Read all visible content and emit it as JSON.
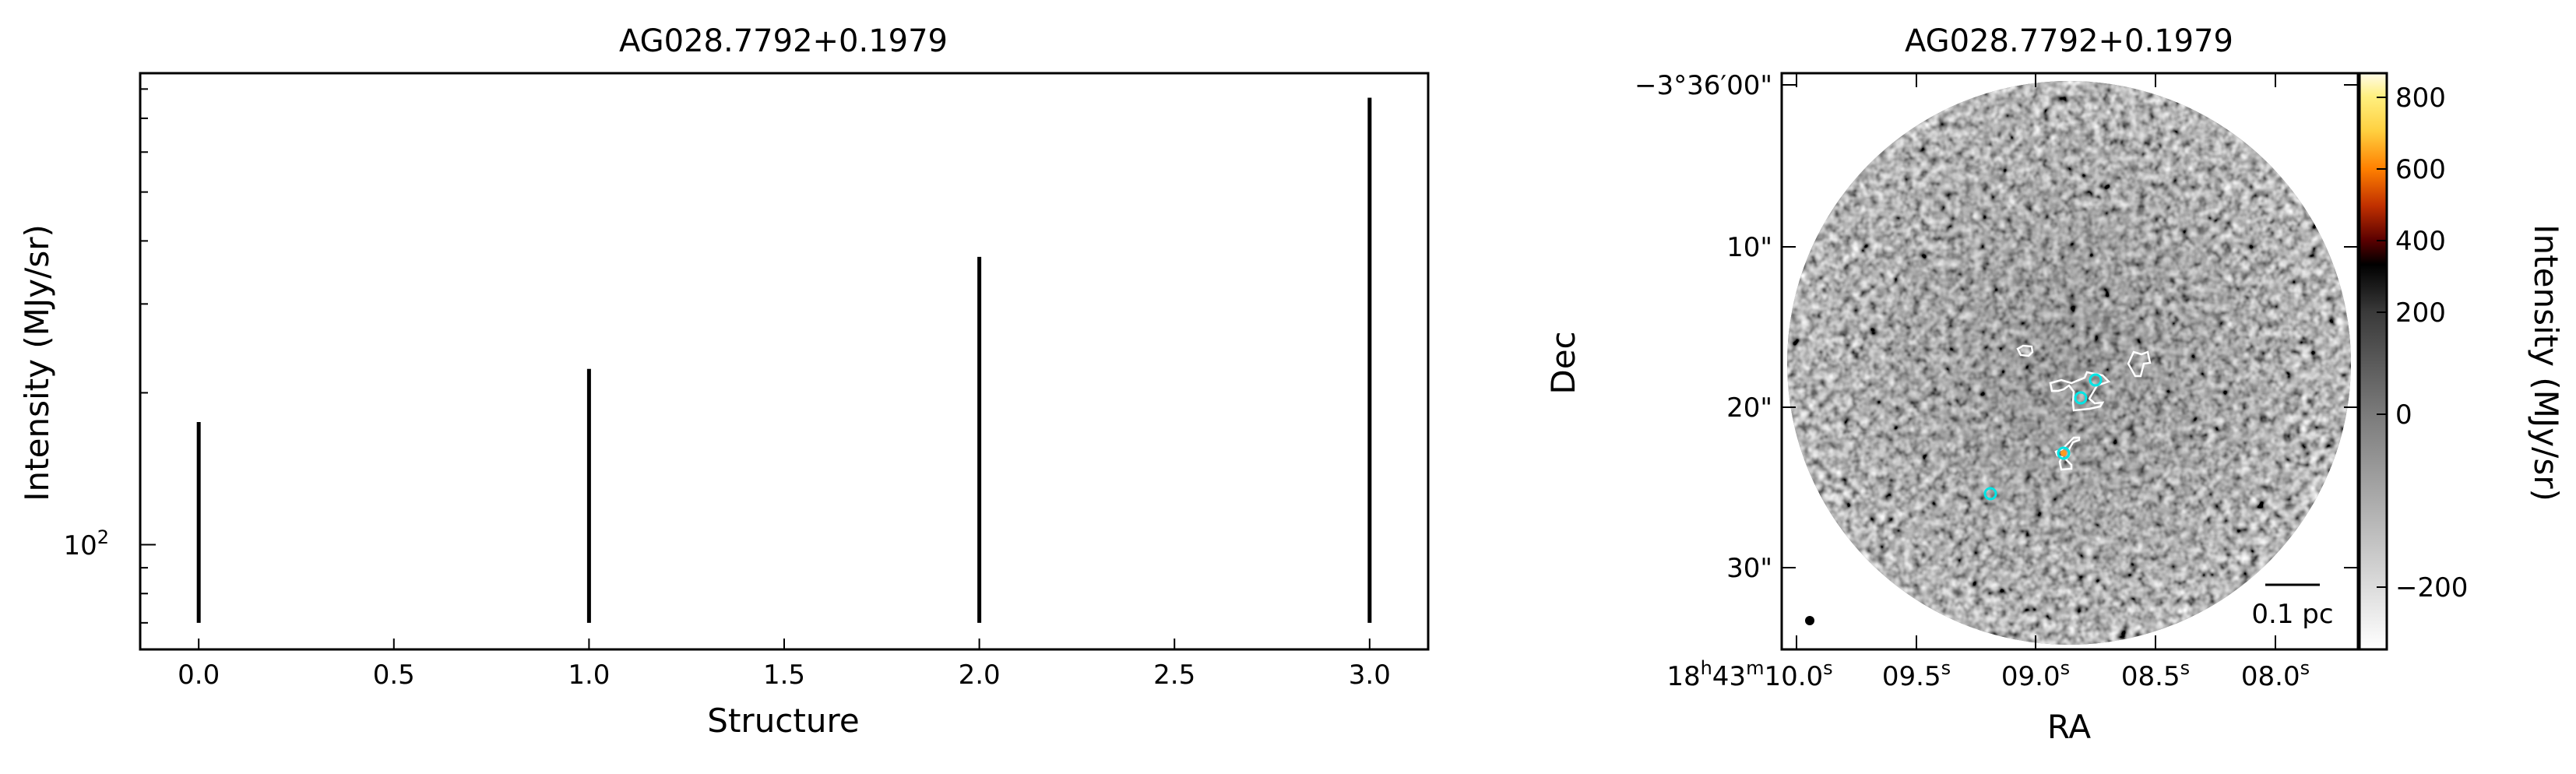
{
  "chart_data": [
    {
      "type": "vlines",
      "title": "AG028.7792+0.1979",
      "xlabel": "Structure",
      "ylabel": "Intensity (MJy/sr)",
      "yscale": "log",
      "xlim": [
        -0.15,
        3.15
      ],
      "ylim": [
        62,
        860
      ],
      "xticks": [
        0.0,
        0.5,
        1.0,
        1.5,
        2.0,
        2.5,
        3.0
      ],
      "xtick_labels": [
        "0.0",
        "0.5",
        "1.0",
        "1.5",
        "2.0",
        "2.5",
        "3.0"
      ],
      "ytick_label": "10",
      "ytick_label_exp": "2",
      "grid": false,
      "x": [
        0,
        1,
        2,
        3
      ],
      "ymin": [
        70,
        70,
        70,
        70
      ],
      "ymax": [
        175,
        223,
        372,
        769
      ],
      "color": "#000000"
    },
    {
      "type": "heatmap",
      "title": "AG028.7792+0.1979",
      "xlabel": "RA",
      "ylabel": "Dec",
      "colorbar_label": "Intensity (MJy/sr)",
      "colorbar_ticks": [
        "800",
        "600",
        "400",
        "200",
        "0",
        "−200"
      ],
      "colorbar_tick_values": [
        800,
        600,
        400,
        200,
        0,
        -200
      ],
      "colorbar_range": [
        -290,
        870
      ],
      "colormap": "grey-to-black-to-hot (white, grey, black, dark red, orange, yellow, white)",
      "dec_ticks": [
        "−3°36′00\"",
        "10\"",
        "20\"",
        "30\""
      ],
      "ra_ticks": [
        {
          "main": "18",
          "h": "h",
          "m1": "43",
          "m": "m",
          "s1": "10.0",
          "s": "s"
        },
        {
          "s1": "09.5",
          "s": "s"
        },
        {
          "s1": "09.0",
          "s": "s"
        },
        {
          "s1": "08.5",
          "s": "s"
        },
        {
          "s1": "08.0",
          "s": "s"
        }
      ],
      "scalebar_label": "0.1 pc",
      "contour_color": "#ffffff",
      "marker_color": "#00e5e5",
      "markers_count": 4
    }
  ]
}
